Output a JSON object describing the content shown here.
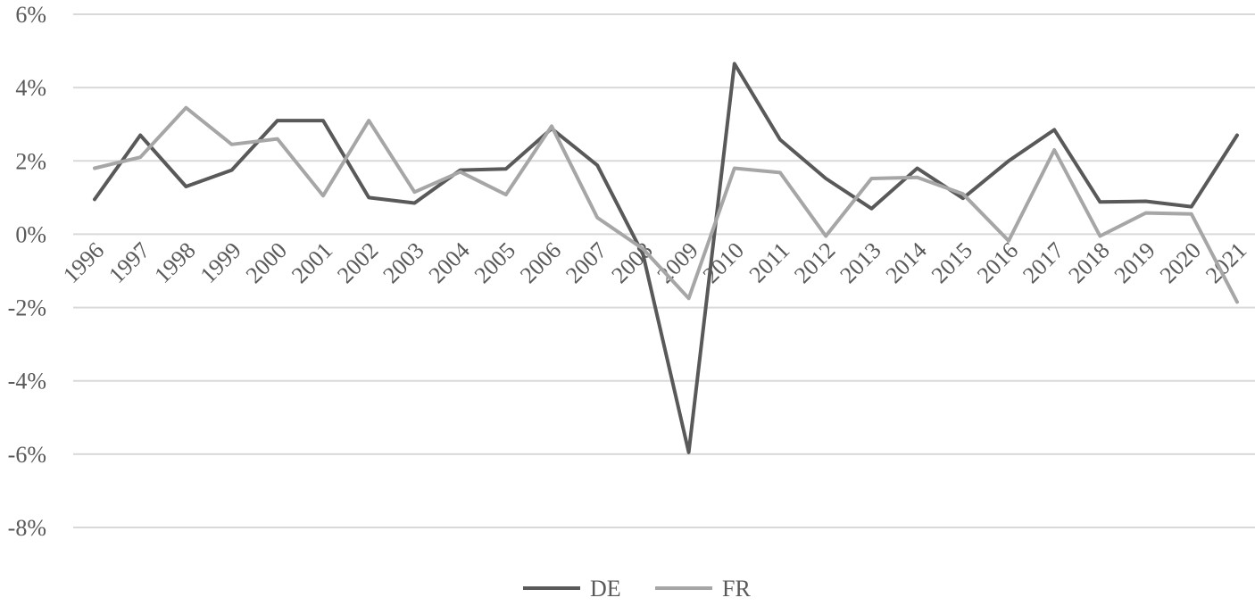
{
  "chart_data": {
    "type": "line",
    "title": "",
    "xlabel": "",
    "ylabel": "",
    "x": [
      "1996",
      "1997",
      "1998",
      "1999",
      "2000",
      "2001",
      "2002",
      "2003",
      "2004",
      "2005",
      "2006",
      "2007",
      "2008",
      "2009",
      "2010",
      "2011",
      "2012",
      "2013",
      "2014",
      "2015",
      "2016",
      "2017",
      "2018",
      "2019",
      "2020",
      "2021"
    ],
    "ylim": [
      -8,
      6
    ],
    "yticks": [
      {
        "value": 6,
        "label": "6%"
      },
      {
        "value": 4,
        "label": "4%"
      },
      {
        "value": 2,
        "label": "2%"
      },
      {
        "value": 0,
        "label": "0%"
      },
      {
        "value": -2,
        "label": "-2%"
      },
      {
        "value": -4,
        "label": "-4%"
      },
      {
        "value": -6,
        "label": "-6%"
      },
      {
        "value": -8,
        "label": "-8%"
      }
    ],
    "grid": true,
    "legend": "bottom",
    "series": [
      {
        "name": "DE",
        "color": "#595959",
        "values": [
          0.95,
          2.7,
          1.3,
          1.75,
          3.1,
          3.1,
          1.0,
          0.85,
          1.75,
          1.78,
          2.88,
          1.88,
          -0.55,
          -5.95,
          4.65,
          2.58,
          1.52,
          0.7,
          1.8,
          0.98,
          2.0,
          2.85,
          0.88,
          0.9,
          0.75,
          2.7
        ]
      },
      {
        "name": "FR",
        "color": "#a6a6a6",
        "values": [
          1.8,
          2.1,
          3.45,
          2.45,
          2.6,
          1.05,
          3.1,
          1.15,
          1.7,
          1.08,
          2.95,
          0.45,
          -0.4,
          -1.75,
          1.8,
          1.68,
          -0.05,
          1.52,
          1.55,
          1.1,
          -0.18,
          2.3,
          -0.05,
          0.58,
          0.55,
          -1.85
        ]
      }
    ]
  }
}
